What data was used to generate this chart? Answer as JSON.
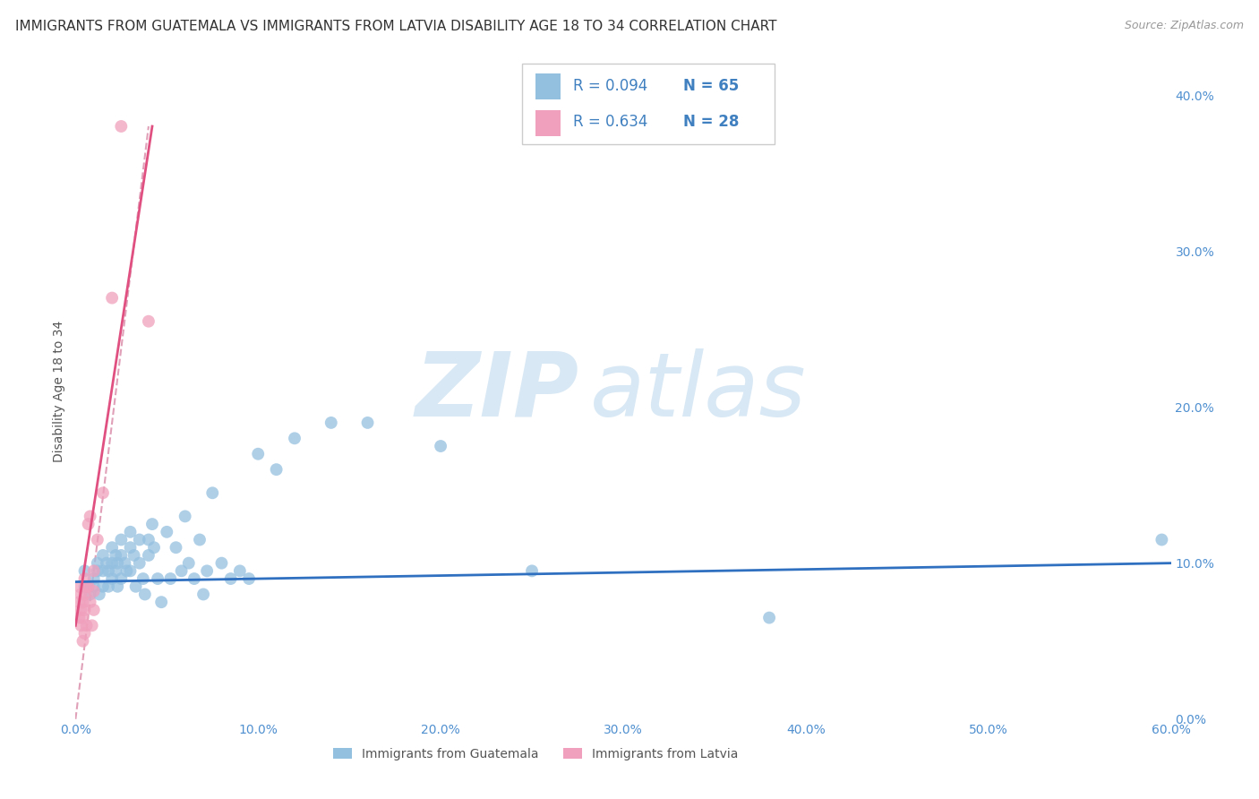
{
  "title": "IMMIGRANTS FROM GUATEMALA VS IMMIGRANTS FROM LATVIA DISABILITY AGE 18 TO 34 CORRELATION CHART",
  "source": "Source: ZipAtlas.com",
  "ylabel": "Disability Age 18 to 34",
  "xlim": [
    0.0,
    0.6
  ],
  "ylim": [
    0.0,
    0.42
  ],
  "xticks": [
    0.0,
    0.1,
    0.2,
    0.3,
    0.4,
    0.5,
    0.6
  ],
  "xticklabels": [
    "0.0%",
    "10.0%",
    "20.0%",
    "30.0%",
    "40.0%",
    "50.0%",
    "60.0%"
  ],
  "yticks_right": [
    0.0,
    0.1,
    0.2,
    0.3,
    0.4
  ],
  "yticklabels_right": [
    "0.0%",
    "10.0%",
    "20.0%",
    "30.0%",
    "40.0%"
  ],
  "watermark_zip": "ZIP",
  "watermark_atlas": "atlas",
  "blue_color": "#94C0E0",
  "pink_color": "#F0A0BC",
  "blue_line_color": "#3070C0",
  "pink_line_color": "#E05080",
  "dashed_line_color": "#E0A0B8",
  "grid_color": "#C8D8EC",
  "background_color": "#FFFFFF",
  "blue_scatter_x": [
    0.005,
    0.005,
    0.008,
    0.01,
    0.01,
    0.012,
    0.012,
    0.013,
    0.015,
    0.015,
    0.015,
    0.017,
    0.018,
    0.018,
    0.02,
    0.02,
    0.02,
    0.022,
    0.022,
    0.023,
    0.023,
    0.025,
    0.025,
    0.025,
    0.027,
    0.028,
    0.03,
    0.03,
    0.03,
    0.032,
    0.033,
    0.035,
    0.035,
    0.037,
    0.038,
    0.04,
    0.04,
    0.042,
    0.043,
    0.045,
    0.047,
    0.05,
    0.052,
    0.055,
    0.058,
    0.06,
    0.062,
    0.065,
    0.068,
    0.07,
    0.072,
    0.075,
    0.08,
    0.085,
    0.09,
    0.095,
    0.1,
    0.11,
    0.12,
    0.14,
    0.16,
    0.2,
    0.25,
    0.38,
    0.595
  ],
  "blue_scatter_y": [
    0.085,
    0.095,
    0.08,
    0.09,
    0.085,
    0.1,
    0.095,
    0.08,
    0.105,
    0.095,
    0.085,
    0.1,
    0.095,
    0.085,
    0.11,
    0.1,
    0.09,
    0.105,
    0.095,
    0.1,
    0.085,
    0.115,
    0.105,
    0.09,
    0.1,
    0.095,
    0.12,
    0.11,
    0.095,
    0.105,
    0.085,
    0.115,
    0.1,
    0.09,
    0.08,
    0.115,
    0.105,
    0.125,
    0.11,
    0.09,
    0.075,
    0.12,
    0.09,
    0.11,
    0.095,
    0.13,
    0.1,
    0.09,
    0.115,
    0.08,
    0.095,
    0.145,
    0.1,
    0.09,
    0.095,
    0.09,
    0.17,
    0.16,
    0.18,
    0.19,
    0.19,
    0.175,
    0.095,
    0.065,
    0.115
  ],
  "pink_scatter_x": [
    0.002,
    0.002,
    0.002,
    0.003,
    0.003,
    0.003,
    0.004,
    0.004,
    0.004,
    0.005,
    0.005,
    0.005,
    0.005,
    0.006,
    0.006,
    0.007,
    0.007,
    0.008,
    0.008,
    0.009,
    0.01,
    0.01,
    0.01,
    0.012,
    0.015,
    0.02,
    0.025,
    0.04
  ],
  "pink_scatter_y": [
    0.085,
    0.075,
    0.065,
    0.08,
    0.07,
    0.06,
    0.075,
    0.065,
    0.05,
    0.09,
    0.08,
    0.07,
    0.055,
    0.085,
    0.06,
    0.125,
    0.085,
    0.13,
    0.075,
    0.06,
    0.095,
    0.082,
    0.07,
    0.115,
    0.145,
    0.27,
    0.38,
    0.255
  ],
  "blue_line_x": [
    0.0,
    0.6
  ],
  "blue_line_y": [
    0.088,
    0.1
  ],
  "pink_line_x": [
    0.0,
    0.042
  ],
  "pink_line_y": [
    0.06,
    0.38
  ],
  "dashed_line_x": [
    0.0,
    0.04
  ],
  "dashed_line_y": [
    0.0,
    0.38
  ],
  "title_fontsize": 11,
  "axis_label_fontsize": 10,
  "tick_fontsize": 10
}
